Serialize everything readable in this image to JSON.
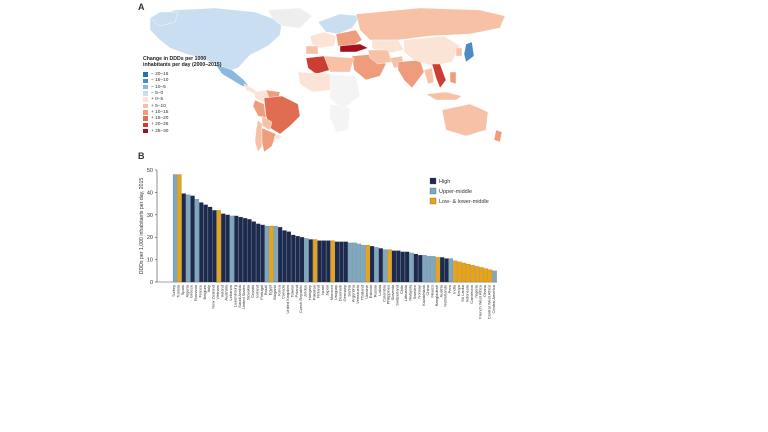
{
  "panels": {
    "a": "A",
    "b": "B"
  },
  "map": {
    "legend_title": "Change in DDDs per 1000 inhabitants per day (2000–2015)",
    "legend": [
      {
        "label": "− 20–15",
        "color": "#2b6fae"
      },
      {
        "label": "− 15–10",
        "color": "#4a8cc6"
      },
      {
        "label": "− 10–5",
        "color": "#8cb8de"
      },
      {
        "label": "− 5–0",
        "color": "#c9def0"
      },
      {
        "label": "+ 0–5",
        "color": "#fbe3d6"
      },
      {
        "label": "+ 5–10",
        "color": "#f7c1a6"
      },
      {
        "label": "+ 10–15",
        "color": "#ef9c7c"
      },
      {
        "label": "+ 15–20",
        "color": "#e06c52"
      },
      {
        "label": "+ 20–25",
        "color": "#cc3d33"
      },
      {
        "label": "+ 25–30",
        "color": "#a5101f"
      }
    ]
  },
  "chart_data": {
    "type": "bar",
    "title": "",
    "xlabel": "",
    "ylabel": "DDDs per 1,000 inhabitants per day, 2015",
    "ylim": [
      0,
      50
    ],
    "yticks": [
      0,
      10,
      20,
      30,
      40,
      50
    ],
    "legend_position": "top-right",
    "groups": [
      {
        "name": "High",
        "color": "#1d2a4f"
      },
      {
        "name": "Upper-middle",
        "color": "#7ea7c0"
      },
      {
        "name": "Low- & lower-middle",
        "color": "#e8a317"
      }
    ],
    "bars": [
      {
        "c": "Turkey",
        "v": 48.0,
        "g": 1
      },
      {
        "c": "Tunisia",
        "v": 48.0,
        "g": 2
      },
      {
        "c": "Spain",
        "v": 39.5,
        "g": 0
      },
      {
        "c": "Algeria",
        "v": 39.0,
        "g": 1
      },
      {
        "c": "Greece",
        "v": 38.5,
        "g": 0
      },
      {
        "c": "Romania",
        "v": 37.0,
        "g": 1
      },
      {
        "c": "France",
        "v": 35.5,
        "g": 0
      },
      {
        "c": "Belgium",
        "v": 34.5,
        "g": 0
      },
      {
        "c": "Italy",
        "v": 33.5,
        "g": 0
      },
      {
        "c": "New Zealand",
        "v": 32.0,
        "g": 0
      },
      {
        "c": "Vietnam",
        "v": 32.0,
        "g": 2
      },
      {
        "c": "Ireland",
        "v": 30.5,
        "g": 0
      },
      {
        "c": "Australia",
        "v": 30.0,
        "g": 0
      },
      {
        "c": "Lebanon",
        "v": 29.5,
        "g": 1
      },
      {
        "c": "Luxembourg",
        "v": 29.5,
        "g": 0
      },
      {
        "c": "Saudi Arabia",
        "v": 29.0,
        "g": 0
      },
      {
        "c": "United States",
        "v": 28.5,
        "g": 0
      },
      {
        "c": "Slovakia",
        "v": 28.0,
        "g": 0
      },
      {
        "c": "Croatia",
        "v": 27.0,
        "g": 0
      },
      {
        "c": "Iceland",
        "v": 26.0,
        "g": 0
      },
      {
        "c": "Portugal",
        "v": 25.5,
        "g": 0
      },
      {
        "c": "Brazil",
        "v": 25.0,
        "g": 1
      },
      {
        "c": "Egypt",
        "v": 25.0,
        "g": 2
      },
      {
        "c": "Bulgaria",
        "v": 25.0,
        "g": 1
      },
      {
        "c": "Korea",
        "v": 24.5,
        "g": 0
      },
      {
        "c": "Canada",
        "v": 23.0,
        "g": 0
      },
      {
        "c": "United Kingdom",
        "v": 22.5,
        "g": 0
      },
      {
        "c": "Taiwan",
        "v": 21.0,
        "g": 0
      },
      {
        "c": "Poland",
        "v": 20.5,
        "g": 0
      },
      {
        "c": "Czech Republic",
        "v": 20.0,
        "g": 0
      },
      {
        "c": "Jordan",
        "v": 19.5,
        "g": 1
      },
      {
        "c": "Hungary",
        "v": 19.0,
        "g": 0
      },
      {
        "c": "Pakistan",
        "v": 19.0,
        "g": 2
      },
      {
        "c": "Finland",
        "v": 18.5,
        "g": 0
      },
      {
        "c": "Israel",
        "v": 18.5,
        "g": 0
      },
      {
        "c": "Japan",
        "v": 18.5,
        "g": 0
      },
      {
        "c": "Morocco",
        "v": 18.5,
        "g": 2
      },
      {
        "c": "Uruguay",
        "v": 18.0,
        "g": 0
      },
      {
        "c": "Denmark",
        "v": 18.0,
        "g": 0
      },
      {
        "c": "Germany",
        "v": 18.0,
        "g": 0
      },
      {
        "c": "Serbia",
        "v": 17.5,
        "g": 1
      },
      {
        "c": "Argentina",
        "v": 17.5,
        "g": 1
      },
      {
        "c": "Venezuela",
        "v": 17.0,
        "g": 1
      },
      {
        "c": "Thailand",
        "v": 16.5,
        "g": 1
      },
      {
        "c": "Ukraine",
        "v": 16.5,
        "g": 2
      },
      {
        "c": "Estonia",
        "v": 16.0,
        "g": 0
      },
      {
        "c": "Russia",
        "v": 15.5,
        "g": 1
      },
      {
        "c": "Latvia",
        "v": 15.0,
        "g": 0
      },
      {
        "c": "Colombia",
        "v": 14.5,
        "g": 1
      },
      {
        "c": "Philippines",
        "v": 14.5,
        "g": 2
      },
      {
        "c": "Slovenia",
        "v": 14.0,
        "g": 0
      },
      {
        "c": "Switzerland",
        "v": 14.0,
        "g": 0
      },
      {
        "c": "Chile",
        "v": 13.5,
        "g": 0
      },
      {
        "c": "Lithuania",
        "v": 13.5,
        "g": 0
      },
      {
        "c": "Malaysia",
        "v": 13.0,
        "g": 1
      },
      {
        "c": "Sweden",
        "v": 12.5,
        "g": 0
      },
      {
        "c": "Norway",
        "v": 12.0,
        "g": 0
      },
      {
        "c": "Kazakhstan",
        "v": 12.0,
        "g": 1
      },
      {
        "c": "China",
        "v": 11.5,
        "g": 1
      },
      {
        "c": "Mexico",
        "v": 11.5,
        "g": 1
      },
      {
        "c": "Bangladesh",
        "v": 11.0,
        "g": 2
      },
      {
        "c": "Austria",
        "v": 11.0,
        "g": 0
      },
      {
        "c": "Netherlands",
        "v": 10.5,
        "g": 0
      },
      {
        "c": "Peru",
        "v": 10.5,
        "g": 1
      },
      {
        "c": "India",
        "v": 9.5,
        "g": 2
      },
      {
        "c": "Kenya",
        "v": 9.0,
        "g": 2
      },
      {
        "c": "Sri Lanka",
        "v": 8.5,
        "g": 2
      },
      {
        "c": "Indonesia",
        "v": 8.0,
        "g": 2
      },
      {
        "c": "Cameroon",
        "v": 7.5,
        "g": 2
      },
      {
        "c": "Nigeria",
        "v": 7.0,
        "g": 2
      },
      {
        "c": "French West Africa",
        "v": 6.5,
        "g": 2
      },
      {
        "c": "Ghana",
        "v": 6.0,
        "g": 2
      },
      {
        "c": "Central West Africa",
        "v": 5.5,
        "g": 2
      },
      {
        "c": "Central America",
        "v": 5.0,
        "g": 1
      }
    ]
  }
}
